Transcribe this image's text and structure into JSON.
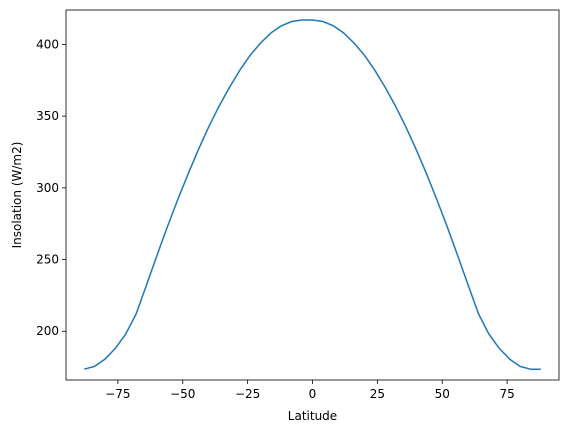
{
  "chart_data": {
    "type": "line",
    "title": "",
    "xlabel": "Latitude",
    "ylabel": "Insolation (W/m2)",
    "xlim": [
      -95,
      95
    ],
    "ylim": [
      166,
      424
    ],
    "xticks": [
      -75,
      -50,
      -25,
      0,
      25,
      50,
      75
    ],
    "xtick_labels": [
      "−75",
      "−50",
      "−25",
      "0",
      "25",
      "50",
      "75"
    ],
    "yticks": [
      200,
      250,
      300,
      350,
      400
    ],
    "ytick_labels": [
      "200",
      "250",
      "300",
      "350",
      "400"
    ],
    "grid": false,
    "line_color": "#1f77b4",
    "series": [
      {
        "x": [
          -88,
          -84,
          -80,
          -76,
          -72,
          -68,
          -64,
          -60,
          -56,
          -52,
          -48,
          -44,
          -40,
          -36,
          -32,
          -28,
          -24,
          -20,
          -16,
          -12,
          -8,
          -4,
          0,
          4,
          8,
          12,
          16,
          20,
          24,
          28,
          32,
          36,
          40,
          44,
          48,
          52,
          56,
          60,
          64,
          68,
          72,
          76,
          80,
          84,
          88
        ],
        "y": [
          173.5,
          175.5,
          180.5,
          188,
          198,
          212,
          232,
          252.5,
          272.5,
          291.5,
          309.5,
          326.5,
          342.5,
          357,
          370,
          382,
          392.5,
          401,
          408,
          413,
          416,
          417,
          417,
          416,
          413,
          408,
          401,
          392.5,
          382,
          370,
          357,
          342.5,
          326.5,
          309.5,
          291.5,
          272.5,
          252.5,
          232,
          212,
          198,
          188,
          180.5,
          175.5,
          173.5,
          173.5
        ]
      }
    ]
  }
}
